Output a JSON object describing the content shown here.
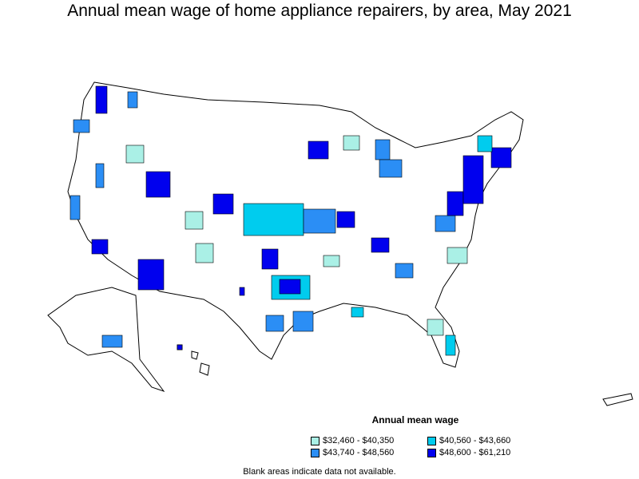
{
  "title": "Annual mean wage of home appliance repairers, by area, May 2021",
  "legend": {
    "title": "Annual mean wage",
    "items": [
      {
        "label": "$32,460 - $40,350",
        "color": "#aaf0e6"
      },
      {
        "label": "$40,560 - $43,660",
        "color": "#00ccee"
      },
      {
        "label": "$43,740 - $48,560",
        "color": "#2b8ef5"
      },
      {
        "label": "$48,600 - $61,210",
        "color": "#0000ee"
      }
    ]
  },
  "footnote": "Blank areas indicate data not available."
}
